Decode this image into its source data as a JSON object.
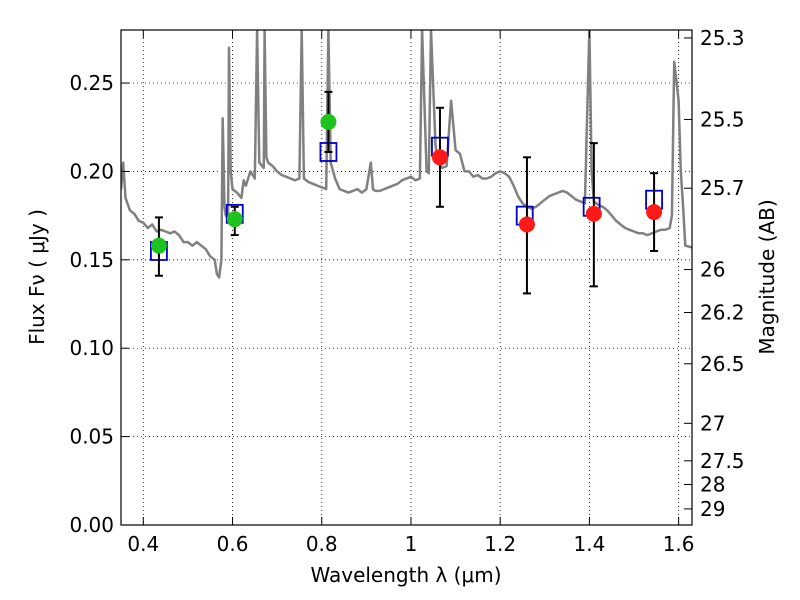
{
  "chart_data": {
    "type": "scatter",
    "title": "",
    "xlabel": "Wavelength  λ (μm)",
    "ylabel": "Flux  Fν  ( μJy )",
    "ylabel_right": "Magnitude (AB)",
    "xlim": [
      0.35,
      1.63
    ],
    "ylim": [
      0.0,
      0.28
    ],
    "grid": true,
    "grid_style": "dotted",
    "x_ticks": [
      0.4,
      0.6,
      0.8,
      1.0,
      1.2,
      1.4,
      1.6
    ],
    "x_tick_labels": [
      "0.4",
      "0.6",
      "0.8",
      "1",
      "1.2",
      "1.4",
      "1.6"
    ],
    "y_ticks": [
      0.0,
      0.05,
      0.1,
      0.15,
      0.2,
      0.25
    ],
    "y_tick_labels": [
      "0.00",
      "0.05",
      "0.10",
      "0.15",
      "0.20",
      "0.25"
    ],
    "right_ticks": [
      {
        "label": "25.3",
        "flux": 0.2755
      },
      {
        "label": "25.5",
        "flux": 0.2294
      },
      {
        "label": "25.7",
        "flux": 0.1905
      },
      {
        "label": "26",
        "flux": 0.1445
      },
      {
        "label": "26.2",
        "flux": 0.1202
      },
      {
        "label": "26.5",
        "flux": 0.0912
      },
      {
        "label": "27",
        "flux": 0.0575
      },
      {
        "label": "27.5",
        "flux": 0.0363
      },
      {
        "label": "28",
        "flux": 0.0229
      },
      {
        "label": "29",
        "flux": 0.0091
      }
    ],
    "colors": {
      "model": "#808080",
      "green": "#1ec31e",
      "red": "#ff1a1a",
      "square": "#0000cc",
      "errorbar": "#000000"
    },
    "series": [
      {
        "kind": "model_sed_line",
        "points": [
          [
            0.35,
            0.19
          ],
          [
            0.355,
            0.205
          ],
          [
            0.36,
            0.185
          ],
          [
            0.37,
            0.178
          ],
          [
            0.38,
            0.176
          ],
          [
            0.39,
            0.172
          ],
          [
            0.4,
            0.171
          ],
          [
            0.41,
            0.168
          ],
          [
            0.42,
            0.17
          ],
          [
            0.43,
            0.166
          ],
          [
            0.44,
            0.167
          ],
          [
            0.45,
            0.166
          ],
          [
            0.46,
            0.165
          ],
          [
            0.47,
            0.166
          ],
          [
            0.48,
            0.164
          ],
          [
            0.49,
            0.16
          ],
          [
            0.5,
            0.16
          ],
          [
            0.51,
            0.158
          ],
          [
            0.52,
            0.16
          ],
          [
            0.53,
            0.158
          ],
          [
            0.54,
            0.156
          ],
          [
            0.55,
            0.152
          ],
          [
            0.56,
            0.15
          ],
          [
            0.565,
            0.142
          ],
          [
            0.57,
            0.14
          ],
          [
            0.575,
            0.15
          ],
          [
            0.578,
            0.23
          ],
          [
            0.582,
            0.18
          ],
          [
            0.585,
            0.175
          ],
          [
            0.59,
            0.174
          ],
          [
            0.592,
            0.27
          ],
          [
            0.596,
            0.2
          ],
          [
            0.6,
            0.19
          ],
          [
            0.61,
            0.188
          ],
          [
            0.62,
            0.185
          ],
          [
            0.625,
            0.195
          ],
          [
            0.63,
            0.192
          ],
          [
            0.64,
            0.2
          ],
          [
            0.65,
            0.196
          ],
          [
            0.655,
            0.28
          ],
          [
            0.66,
            0.205
          ],
          [
            0.67,
            0.202
          ],
          [
            0.672,
            0.28
          ],
          [
            0.676,
            0.208
          ],
          [
            0.68,
            0.205
          ],
          [
            0.69,
            0.203
          ],
          [
            0.7,
            0.2
          ],
          [
            0.71,
            0.198
          ],
          [
            0.72,
            0.197
          ],
          [
            0.73,
            0.196
          ],
          [
            0.74,
            0.195
          ],
          [
            0.75,
            0.196
          ],
          [
            0.755,
            0.28
          ],
          [
            0.76,
            0.196
          ],
          [
            0.77,
            0.194
          ],
          [
            0.78,
            0.193
          ],
          [
            0.79,
            0.192
          ],
          [
            0.8,
            0.191
          ],
          [
            0.81,
            0.19
          ],
          [
            0.815,
            0.28
          ],
          [
            0.82,
            0.205
          ],
          [
            0.83,
            0.196
          ],
          [
            0.84,
            0.19
          ],
          [
            0.85,
            0.189
          ],
          [
            0.86,
            0.188
          ],
          [
            0.87,
            0.189
          ],
          [
            0.88,
            0.19
          ],
          [
            0.89,
            0.188
          ],
          [
            0.9,
            0.19
          ],
          [
            0.91,
            0.205
          ],
          [
            0.915,
            0.19
          ],
          [
            0.92,
            0.189
          ],
          [
            0.93,
            0.189
          ],
          [
            0.94,
            0.19
          ],
          [
            0.95,
            0.191
          ],
          [
            0.96,
            0.192
          ],
          [
            0.97,
            0.193
          ],
          [
            0.98,
            0.195
          ],
          [
            0.99,
            0.196
          ],
          [
            1.0,
            0.197
          ],
          [
            1.01,
            0.195
          ],
          [
            1.02,
            0.196
          ],
          [
            1.025,
            0.28
          ],
          [
            1.035,
            0.2
          ],
          [
            1.04,
            0.199
          ],
          [
            1.045,
            0.28
          ],
          [
            1.055,
            0.215
          ],
          [
            1.06,
            0.205
          ],
          [
            1.07,
            0.202
          ],
          [
            1.08,
            0.203
          ],
          [
            1.09,
            0.24
          ],
          [
            1.1,
            0.212
          ],
          [
            1.11,
            0.21
          ],
          [
            1.12,
            0.2
          ],
          [
            1.13,
            0.2
          ],
          [
            1.14,
            0.197
          ],
          [
            1.15,
            0.198
          ],
          [
            1.16,
            0.196
          ],
          [
            1.17,
            0.196
          ],
          [
            1.18,
            0.197
          ],
          [
            1.19,
            0.199
          ],
          [
            1.2,
            0.2
          ],
          [
            1.21,
            0.199
          ],
          [
            1.22,
            0.197
          ],
          [
            1.23,
            0.192
          ],
          [
            1.24,
            0.186
          ],
          [
            1.25,
            0.182
          ],
          [
            1.26,
            0.18
          ],
          [
            1.27,
            0.179
          ],
          [
            1.28,
            0.18
          ],
          [
            1.29,
            0.182
          ],
          [
            1.3,
            0.184
          ],
          [
            1.31,
            0.186
          ],
          [
            1.32,
            0.187
          ],
          [
            1.33,
            0.188
          ],
          [
            1.34,
            0.189
          ],
          [
            1.35,
            0.188
          ],
          [
            1.36,
            0.186
          ],
          [
            1.37,
            0.184
          ],
          [
            1.38,
            0.183
          ],
          [
            1.39,
            0.182
          ],
          [
            1.4,
            0.281
          ],
          [
            1.405,
            0.2
          ],
          [
            1.41,
            0.183
          ],
          [
            1.42,
            0.181
          ],
          [
            1.43,
            0.18
          ],
          [
            1.44,
            0.178
          ],
          [
            1.45,
            0.175
          ],
          [
            1.46,
            0.172
          ],
          [
            1.47,
            0.17
          ],
          [
            1.48,
            0.168
          ],
          [
            1.49,
            0.167
          ],
          [
            1.5,
            0.166
          ],
          [
            1.51,
            0.165
          ],
          [
            1.52,
            0.165
          ],
          [
            1.53,
            0.164
          ],
          [
            1.54,
            0.165
          ],
          [
            1.55,
            0.166
          ],
          [
            1.56,
            0.167
          ],
          [
            1.57,
            0.167
          ],
          [
            1.58,
            0.168
          ],
          [
            1.585,
            0.175
          ],
          [
            1.59,
            0.262
          ],
          [
            1.6,
            0.24
          ],
          [
            1.605,
            0.2
          ],
          [
            1.61,
            0.18
          ],
          [
            1.615,
            0.158
          ],
          [
            1.63,
            0.157
          ]
        ]
      },
      {
        "kind": "model_photometry_squares",
        "points": [
          {
            "x": 0.435,
            "y": 0.155
          },
          {
            "x": 0.605,
            "y": 0.176
          },
          {
            "x": 0.815,
            "y": 0.211
          },
          {
            "x": 1.065,
            "y": 0.214
          },
          {
            "x": 1.255,
            "y": 0.175
          },
          {
            "x": 1.405,
            "y": 0.18
          },
          {
            "x": 1.545,
            "y": 0.184
          }
        ]
      },
      {
        "kind": "observed_green",
        "points": [
          {
            "x": 0.435,
            "y": 0.158,
            "err_low": 0.141,
            "err_high": 0.174
          },
          {
            "x": 0.605,
            "y": 0.173,
            "err_low": 0.164,
            "err_high": 0.18
          },
          {
            "x": 0.815,
            "y": 0.228,
            "err_low": 0.211,
            "err_high": 0.245
          }
        ]
      },
      {
        "kind": "observed_red",
        "points": [
          {
            "x": 1.065,
            "y": 0.208,
            "err_low": 0.18,
            "err_high": 0.236
          },
          {
            "x": 1.26,
            "y": 0.17,
            "err_low": 0.131,
            "err_high": 0.208
          },
          {
            "x": 1.41,
            "y": 0.176,
            "err_low": 0.135,
            "err_high": 0.216
          },
          {
            "x": 1.545,
            "y": 0.177,
            "err_low": 0.155,
            "err_high": 0.199
          }
        ]
      }
    ]
  }
}
